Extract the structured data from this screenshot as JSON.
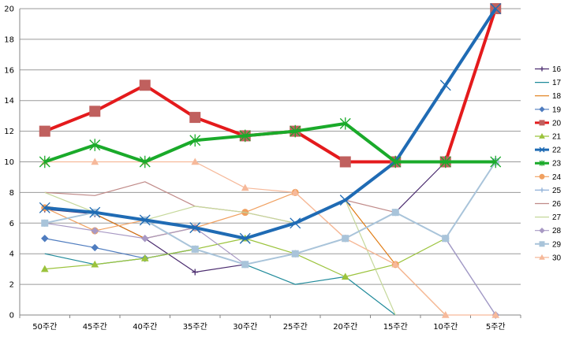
{
  "chart_data": {
    "type": "line",
    "title": "",
    "xlabel": "",
    "ylabel": "",
    "ylim": [
      0,
      20
    ],
    "y_ticks": [
      "0",
      "2",
      "4",
      "6",
      "8",
      "10",
      "12",
      "14",
      "16",
      "18",
      "20"
    ],
    "categories": [
      "50주간",
      "45주간",
      "40주간",
      "35주간",
      "30주간",
      "25주간",
      "20주간",
      "15주간",
      "10주간",
      "5주간"
    ],
    "grid": true,
    "legend_position": "right",
    "series": [
      {
        "name": "16",
        "color": "#4B2C6F",
        "marker": "plus",
        "width": 1.2,
        "values": [
          6.9,
          6.6,
          5.0,
          2.8,
          3.3,
          4.0,
          5.0,
          6.7,
          10.0,
          20.0
        ]
      },
      {
        "name": "17",
        "color": "#1F8A9A",
        "marker": "none",
        "width": 1.2,
        "values": [
          4.0,
          3.3,
          3.7,
          4.3,
          3.3,
          2.0,
          2.5,
          0.0,
          null,
          null
        ]
      },
      {
        "name": "18",
        "color": "#E07A10",
        "marker": "none",
        "width": 1.2,
        "values": [
          7.1,
          6.6,
          5.0,
          5.7,
          5.0,
          6.0,
          7.5,
          3.3,
          0.0,
          null
        ]
      },
      {
        "name": "19",
        "color": "#4F7CBF",
        "marker": "diamond",
        "width": 1.2,
        "values": [
          5.0,
          4.4,
          3.7,
          4.3,
          3.3,
          4.0,
          5.0,
          6.7,
          5.0,
          0.0
        ]
      },
      {
        "name": "20",
        "color": "#E41A1C",
        "marker": "square",
        "markerColor": "#C0605E",
        "width": 4,
        "values": [
          12.0,
          13.3,
          15.0,
          12.9,
          11.7,
          12.0,
          10.0,
          10.0,
          10.0,
          20.0
        ]
      },
      {
        "name": "21",
        "color": "#9BC33C",
        "marker": "triangle",
        "width": 1.2,
        "values": [
          3.0,
          3.3,
          3.7,
          4.3,
          5.0,
          4.0,
          2.5,
          3.3,
          5.0,
          null
        ]
      },
      {
        "name": "22",
        "color": "#1F6BB4",
        "marker": "x",
        "width": 4,
        "values": [
          7.0,
          6.7,
          6.2,
          5.7,
          5.0,
          6.0,
          7.5,
          10.0,
          15.0,
          20.0
        ]
      },
      {
        "name": "23",
        "color": "#1AAA2A",
        "marker": "star",
        "width": 4,
        "values": [
          10.0,
          11.1,
          10.0,
          11.4,
          11.7,
          12.0,
          12.5,
          10.0,
          10.0,
          10.0
        ]
      },
      {
        "name": "24",
        "color": "#F0A060",
        "marker": "circle",
        "width": 1.2,
        "values": [
          7.0,
          5.5,
          6.2,
          5.7,
          6.7,
          8.0,
          5.0,
          3.3,
          null,
          null
        ]
      },
      {
        "name": "25",
        "color": "#8FB0D8",
        "marker": "plus",
        "width": 1.2,
        "values": [
          6.0,
          6.7,
          6.2,
          4.3,
          3.3,
          4.0,
          5.0,
          6.7,
          5.0,
          10.0
        ]
      },
      {
        "name": "26",
        "color": "#C08A88",
        "marker": "none",
        "width": 1.2,
        "values": [
          8.0,
          7.8,
          8.7,
          7.1,
          6.7,
          6.0,
          7.5,
          6.7,
          null,
          null
        ]
      },
      {
        "name": "27",
        "color": "#C5D89A",
        "marker": "none",
        "width": 1.2,
        "values": [
          8.0,
          6.7,
          6.2,
          7.1,
          6.7,
          6.0,
          7.5,
          0.0,
          null,
          null
        ]
      },
      {
        "name": "28",
        "color": "#A899C4",
        "marker": "diamond",
        "width": 1.2,
        "values": [
          6.0,
          5.5,
          5.0,
          5.7,
          3.3,
          4.0,
          5.0,
          6.7,
          5.0,
          0.0
        ]
      },
      {
        "name": "29",
        "color": "#A9C4DA",
        "marker": "square",
        "width": 2,
        "values": [
          6.0,
          6.7,
          6.2,
          4.3,
          3.3,
          4.0,
          5.0,
          6.7,
          5.0,
          10.0
        ]
      },
      {
        "name": "30",
        "color": "#F6B99A",
        "marker": "triangle",
        "width": 1.2,
        "values": [
          10.0,
          10.0,
          10.0,
          10.0,
          8.3,
          8.0,
          5.0,
          3.3,
          0.0,
          0.0
        ]
      }
    ]
  }
}
